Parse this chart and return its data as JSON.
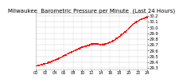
{
  "title": "Milwaukee  Barometric Pressure per Minute  (Last 24 Hours)",
  "line_color": "#ff0000",
  "bg_color": "#ffffff",
  "grid_color": "#cccccc",
  "y_min": 29.28,
  "y_max": 30.25,
  "y_ticks": [
    29.3,
    29.4,
    29.5,
    29.6,
    29.7,
    29.8,
    29.9,
    30.0,
    30.1,
    30.2
  ],
  "num_points": 1440,
  "title_fontsize": 5.0,
  "tick_fontsize": 3.8,
  "marker_size": 0.5,
  "shape_keypoints_x": [
    0.0,
    0.08,
    0.18,
    0.3,
    0.42,
    0.5,
    0.54,
    0.58,
    0.62,
    0.68,
    0.78,
    0.88,
    0.95,
    1.0
  ],
  "shape_keypoints_y": [
    29.34,
    29.38,
    29.45,
    29.57,
    29.67,
    29.72,
    29.73,
    29.71,
    29.72,
    29.76,
    29.9,
    30.08,
    30.16,
    30.18
  ]
}
